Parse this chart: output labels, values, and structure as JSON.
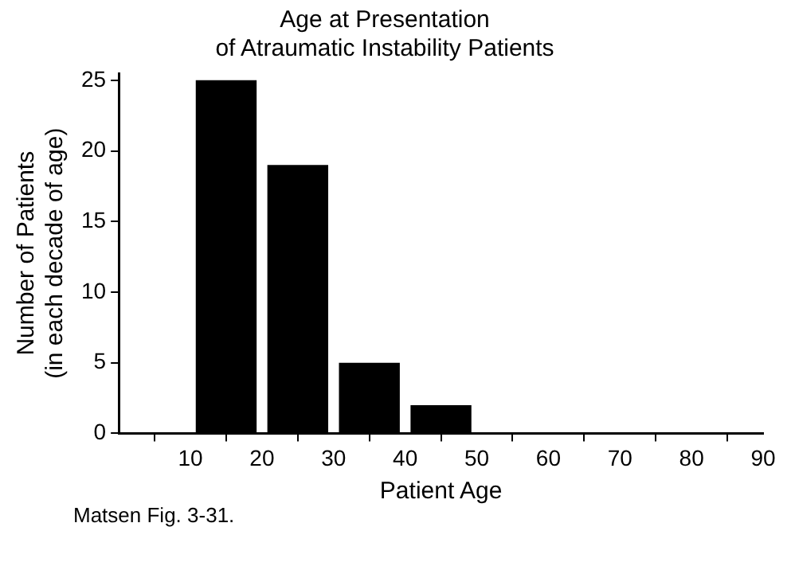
{
  "chart_data": {
    "type": "histogram",
    "title": "Age at Presentation\nof Atraumatic Instability Patients",
    "xlabel": "Patient Age",
    "ylabel": "Number of Patients\n(in each decade of age)",
    "bins": [
      10,
      20,
      30,
      40,
      50
    ],
    "values": [
      25,
      19,
      5,
      2
    ],
    "color": "#000000",
    "xlim": [
      0,
      90
    ],
    "xticks": [
      10,
      20,
      30,
      40,
      50,
      60,
      70,
      80,
      90
    ],
    "ylim": [
      0,
      25.5
    ],
    "yticks": [
      0,
      5,
      10,
      15,
      20,
      25
    ],
    "annotations": [
      "Matsen Fig. 3-31."
    ]
  }
}
